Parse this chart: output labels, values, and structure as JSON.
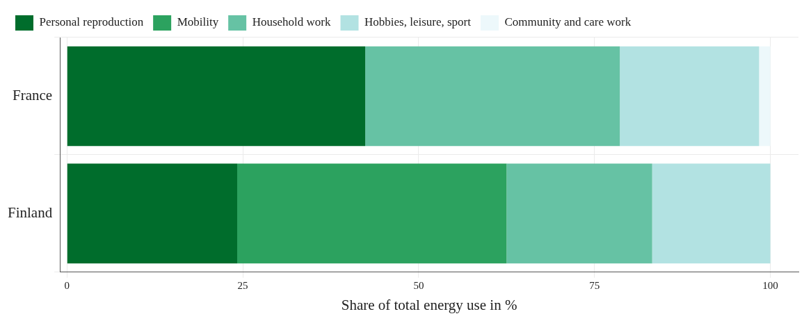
{
  "chart_data": {
    "type": "bar",
    "orientation": "horizontal",
    "stacked": true,
    "xlabel": "Share of total energy use in %",
    "categories": [
      "France",
      "Finland"
    ],
    "series": [
      {
        "name": "Personal reproduction",
        "color": "#006d2c",
        "values": [
          42.4,
          24.2
        ]
      },
      {
        "name": "Mobility",
        "color": "#2ca25f",
        "values": [
          null,
          38.3
        ]
      },
      {
        "name": "Household work",
        "color": "#66c2a4",
        "values": [
          36.2,
          20.7
        ]
      },
      {
        "name": "Hobbies, leisure, sport",
        "color": "#b2e2e2",
        "values": [
          19.8,
          16.8
        ]
      },
      {
        "name": "Community and care work",
        "color": "#edf8fb",
        "values": [
          1.6,
          null
        ]
      }
    ],
    "xlim": [
      -1,
      104
    ],
    "xticks": [
      0,
      25,
      50,
      75,
      100
    ],
    "grid": true,
    "legend": "top"
  }
}
